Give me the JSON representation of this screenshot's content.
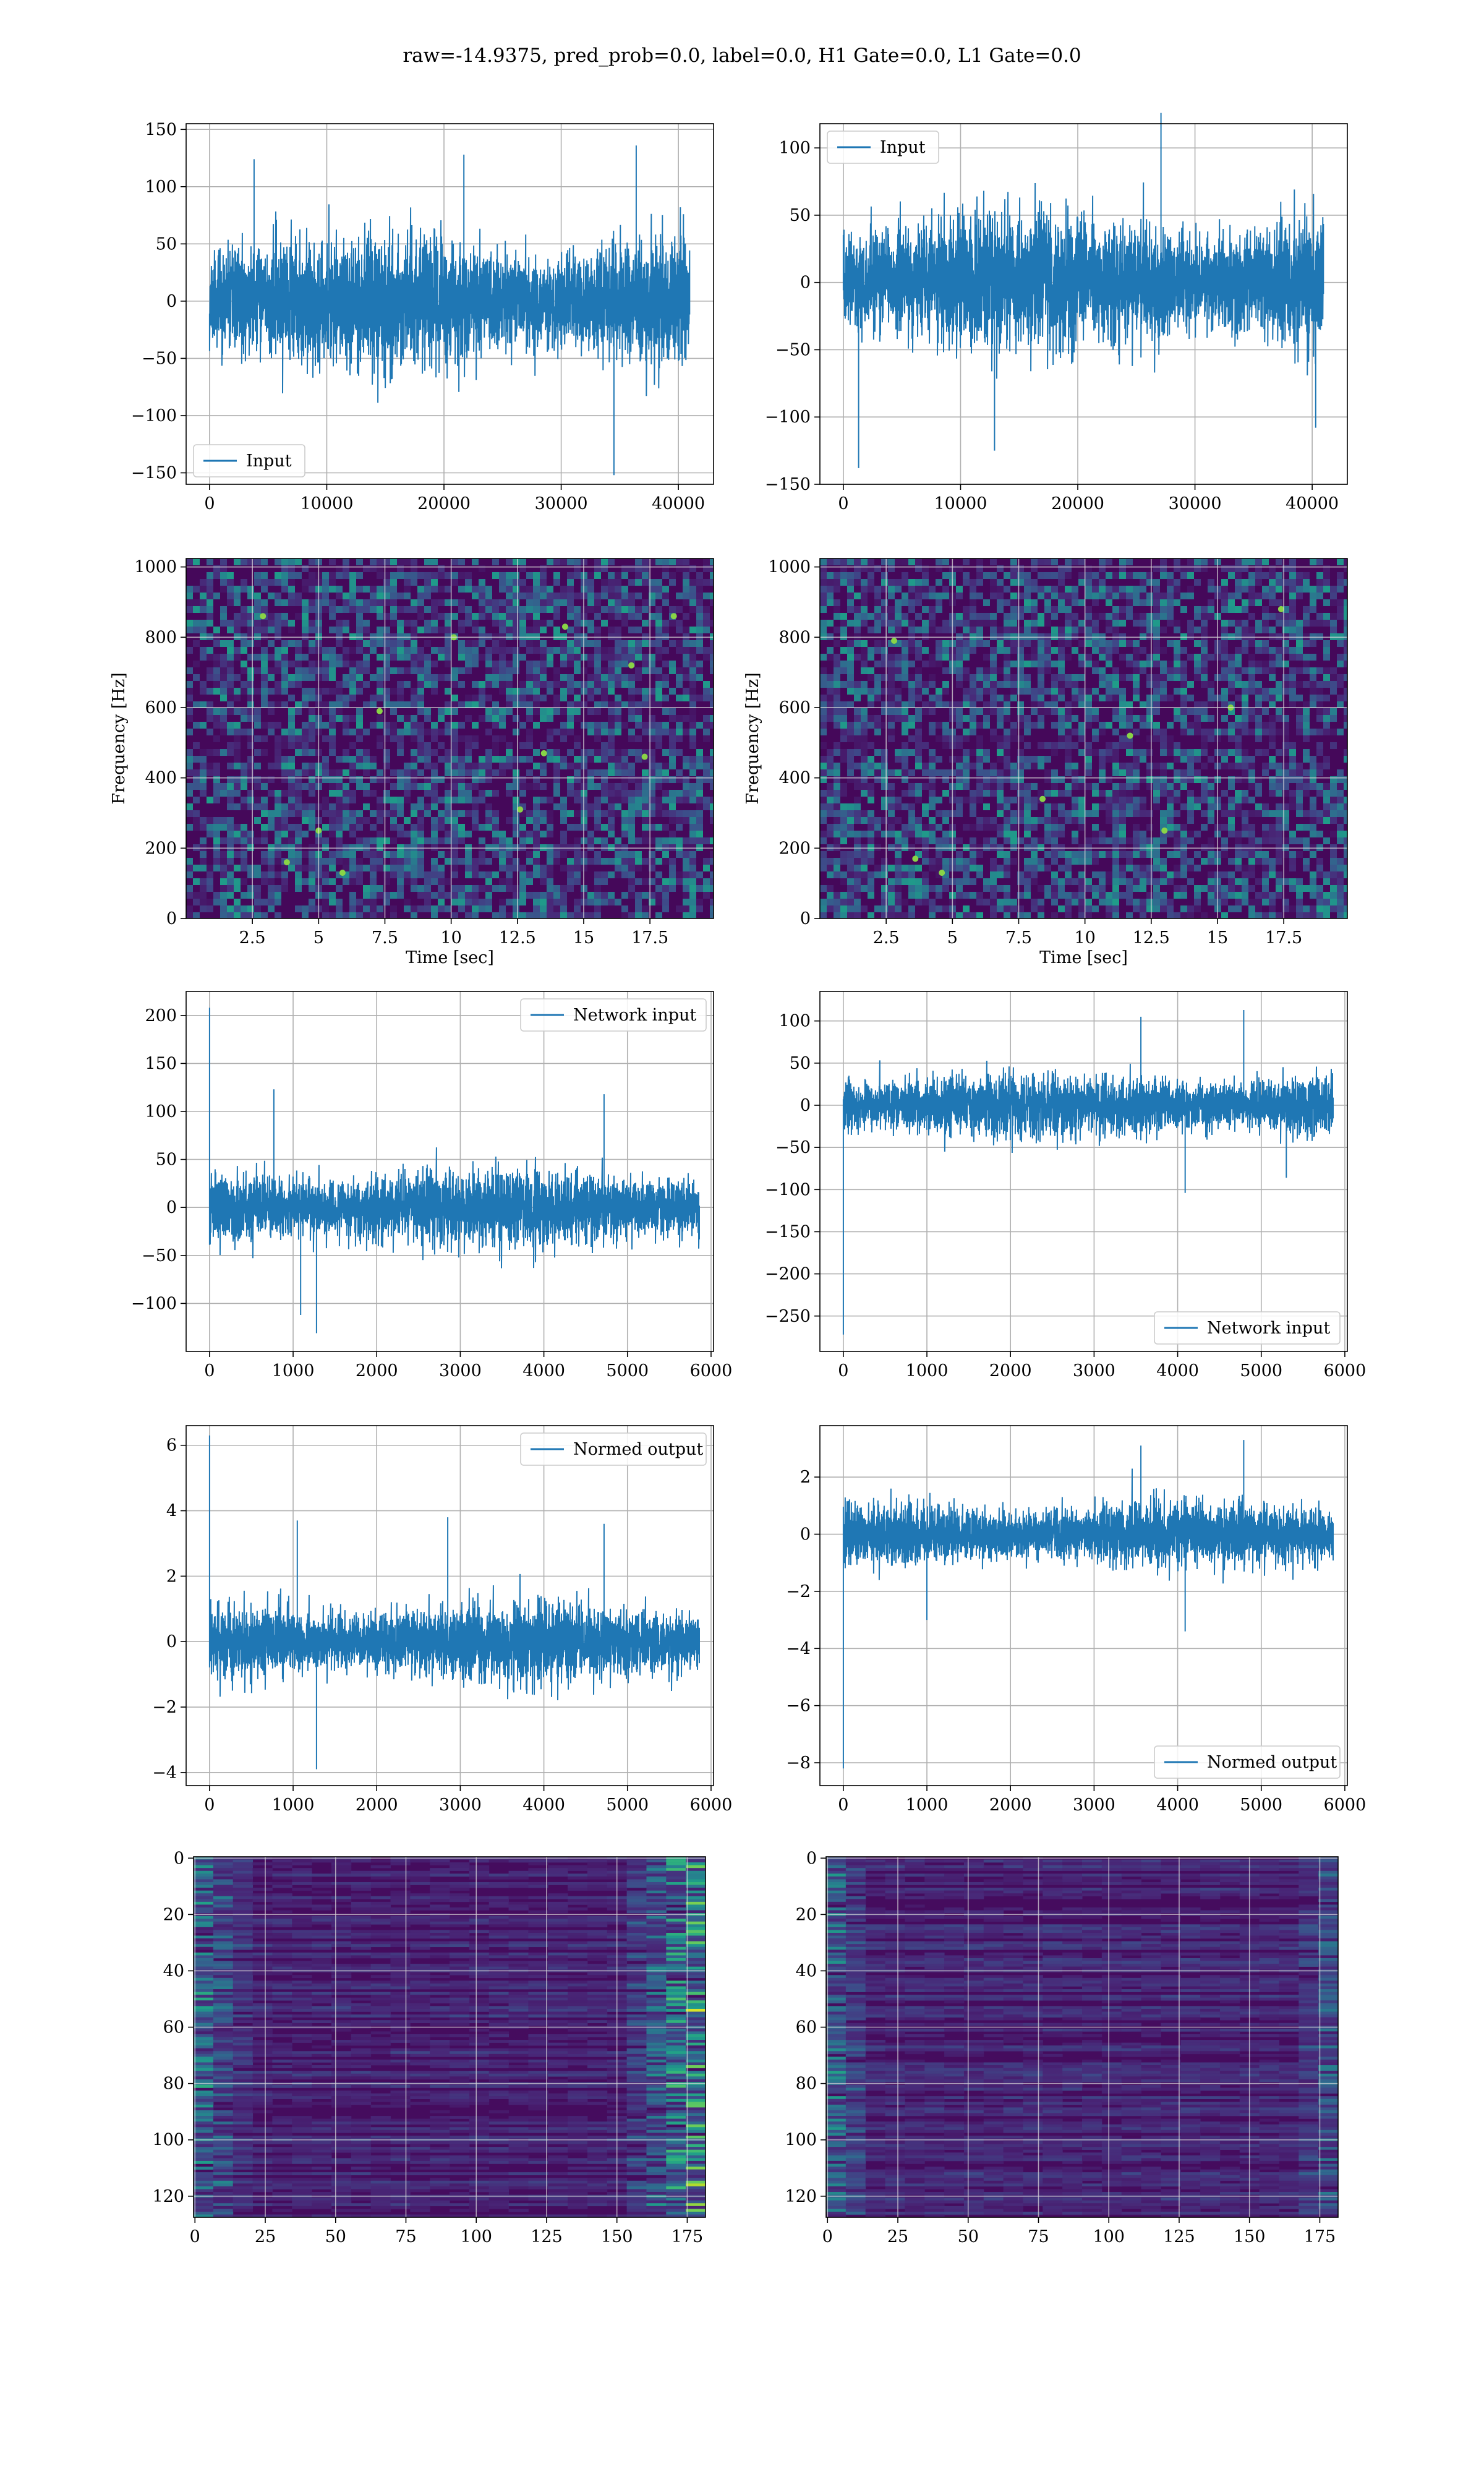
{
  "figure": {
    "suptitle": "raw=-14.9375, pred_prob=0.0, label=0.0, H1 Gate=0.0, L1 Gate=0.0",
    "line_color": "#1f77b4",
    "grid_color": "#b0b0b0"
  },
  "chart_data": [
    {
      "id": "input_h1",
      "type": "line",
      "title": "",
      "xlabel": "",
      "ylabel": "",
      "legend_position": "lower-left",
      "xlim": [
        -2000,
        43000
      ],
      "ylim": [
        -160,
        155
      ],
      "xticks": [
        0,
        10000,
        20000,
        30000,
        40000
      ],
      "yticks": [
        -150,
        -100,
        -50,
        0,
        50,
        100,
        150
      ],
      "series": [
        {
          "name": "Input",
          "n_points": 40960,
          "x_range": [
            0,
            40960
          ],
          "envelope_abs": 90,
          "typical_abs": 55,
          "extremes": [
            [
              34500,
              -152
            ],
            [
              36400,
              136
            ],
            [
              21700,
              128
            ],
            [
              3800,
              124
            ]
          ]
        }
      ]
    },
    {
      "id": "input_l1",
      "type": "line",
      "title": "",
      "xlabel": "",
      "ylabel": "",
      "legend_position": "top-left",
      "xlim": [
        -2000,
        43000
      ],
      "ylim": [
        -150,
        118
      ],
      "xticks": [
        0,
        10000,
        20000,
        30000,
        40000
      ],
      "yticks": [
        -150,
        -100,
        -50,
        0,
        50,
        100
      ],
      "series": [
        {
          "name": "Input",
          "n_points": 40960,
          "x_range": [
            0,
            40960
          ],
          "envelope_abs": 80,
          "typical_abs": 48,
          "extremes": [
            [
              1300,
              -138
            ],
            [
              27100,
              126
            ],
            [
              12900,
              -125
            ],
            [
              40300,
              -108
            ]
          ]
        }
      ]
    },
    {
      "id": "spec_h1",
      "type": "heatmap",
      "title": "",
      "xlabel": "Time [sec]",
      "ylabel": "Frequency [Hz]",
      "colormap": "viridis",
      "xlim": [
        0,
        19.9
      ],
      "ylim": [
        0,
        1024
      ],
      "xticks": [
        2.5,
        5.0,
        7.5,
        10.0,
        12.5,
        15.0,
        17.5
      ],
      "yticks": [
        0,
        200,
        400,
        600,
        800,
        1000
      ],
      "dark_bands_hz": [
        500,
        1000
      ],
      "bright_spots": [
        [
          2.9,
          860
        ],
        [
          5.0,
          250
        ],
        [
          7.3,
          590
        ],
        [
          10.1,
          800
        ],
        [
          12.6,
          310
        ],
        [
          14.3,
          830
        ],
        [
          16.8,
          720
        ],
        [
          17.3,
          460
        ],
        [
          3.8,
          160
        ],
        [
          5.9,
          130
        ],
        [
          13.5,
          470
        ],
        [
          18.4,
          860
        ]
      ]
    },
    {
      "id": "spec_l1",
      "type": "heatmap",
      "title": "",
      "xlabel": "Time [sec]",
      "ylabel": "Frequency [Hz]",
      "colormap": "viridis",
      "xlim": [
        0,
        19.9
      ],
      "ylim": [
        0,
        1024
      ],
      "xticks": [
        2.5,
        5.0,
        7.5,
        10.0,
        12.5,
        15.0,
        17.5
      ],
      "yticks": [
        0,
        200,
        400,
        600,
        800,
        1000
      ],
      "dark_bands_hz": [
        500,
        1000
      ],
      "bright_spots": [
        [
          3.6,
          170
        ],
        [
          4.6,
          130
        ],
        [
          15.5,
          600
        ],
        [
          2.8,
          790
        ],
        [
          8.4,
          340
        ],
        [
          11.7,
          520
        ],
        [
          17.4,
          880
        ],
        [
          13.0,
          250
        ]
      ]
    },
    {
      "id": "network_input_h1",
      "type": "line",
      "title": "",
      "xlabel": "",
      "ylabel": "",
      "legend_position": "top-right",
      "xlim": [
        -280,
        6030
      ],
      "ylim": [
        -150,
        225
      ],
      "xticks": [
        0,
        1000,
        2000,
        3000,
        4000,
        5000,
        6000
      ],
      "yticks": [
        -100,
        -50,
        0,
        50,
        100,
        150,
        200
      ],
      "series": [
        {
          "name": "Network input",
          "n_points": 5860,
          "x_range": [
            0,
            5860
          ],
          "envelope_abs": 55,
          "typical_abs": 38,
          "extremes": [
            [
              0,
              208
            ],
            [
              1280,
              -131
            ],
            [
              770,
              123
            ],
            [
              1090,
              -112
            ],
            [
              4720,
              118
            ]
          ]
        }
      ]
    },
    {
      "id": "network_input_l1",
      "type": "line",
      "title": "",
      "xlabel": "",
      "ylabel": "",
      "legend_position": "bottom-right",
      "xlim": [
        -280,
        6030
      ],
      "ylim": [
        -292,
        135
      ],
      "xticks": [
        0,
        1000,
        2000,
        3000,
        4000,
        5000,
        6000
      ],
      "yticks": [
        -250,
        -200,
        -150,
        -100,
        -50,
        0,
        50,
        100
      ],
      "series": [
        {
          "name": "Network input",
          "n_points": 5860,
          "x_range": [
            0,
            5860
          ],
          "envelope_abs": 55,
          "typical_abs": 36,
          "extremes": [
            [
              0,
              -272
            ],
            [
              4090,
              -104
            ],
            [
              4790,
              113
            ],
            [
              3560,
              105
            ],
            [
              5300,
              -86
            ]
          ]
        }
      ]
    },
    {
      "id": "normed_output_h1",
      "type": "line",
      "title": "",
      "xlabel": "",
      "ylabel": "",
      "legend_position": "top-right",
      "xlim": [
        -280,
        6030
      ],
      "ylim": [
        -4.4,
        6.6
      ],
      "xticks": [
        0,
        1000,
        2000,
        3000,
        4000,
        5000,
        6000
      ],
      "yticks": [
        -4,
        -2,
        0,
        2,
        4,
        6
      ],
      "series": [
        {
          "name": "Normed output",
          "n_points": 5860,
          "x_range": [
            0,
            5860
          ],
          "envelope_abs": 1.6,
          "typical_abs": 1.1,
          "extremes": [
            [
              0,
              6.3
            ],
            [
              1280,
              -3.9
            ],
            [
              1050,
              3.7
            ],
            [
              2850,
              3.8
            ],
            [
              4720,
              3.6
            ]
          ]
        }
      ]
    },
    {
      "id": "normed_output_l1",
      "type": "line",
      "title": "",
      "xlabel": "",
      "ylabel": "",
      "legend_position": "bottom-right",
      "xlim": [
        -280,
        6030
      ],
      "ylim": [
        -8.8,
        3.8
      ],
      "xticks": [
        0,
        1000,
        2000,
        3000,
        4000,
        5000,
        6000
      ],
      "yticks": [
        -8,
        -6,
        -4,
        -2,
        0,
        2
      ],
      "series": [
        {
          "name": "Normed output",
          "n_points": 5860,
          "x_range": [
            0,
            5860
          ],
          "envelope_abs": 1.7,
          "typical_abs": 1.1,
          "extremes": [
            [
              0,
              -8.2
            ],
            [
              4090,
              -3.4
            ],
            [
              4790,
              3.3
            ],
            [
              3560,
              3.1
            ],
            [
              1000,
              -3.0
            ]
          ]
        }
      ]
    },
    {
      "id": "features_h1",
      "type": "heatmap",
      "title": "",
      "xlabel": "",
      "ylabel": "",
      "colormap": "viridis",
      "rows": 128,
      "cols": 182,
      "xlim": [
        -0.5,
        181.5
      ],
      "ylim": [
        127.5,
        -0.5
      ],
      "xticks": [
        0,
        25,
        50,
        75,
        100,
        125,
        150,
        175
      ],
      "yticks": [
        0,
        20,
        40,
        60,
        80,
        100,
        120
      ],
      "bright_regions": "left edge (cols 0-20) and right edge (cols 155-181)"
    },
    {
      "id": "features_l1",
      "type": "heatmap",
      "title": "",
      "xlabel": "",
      "ylabel": "",
      "colormap": "viridis",
      "rows": 128,
      "cols": 182,
      "xlim": [
        -0.5,
        181.5
      ],
      "ylim": [
        127.5,
        -0.5
      ],
      "xticks": [
        0,
        25,
        50,
        75,
        100,
        125,
        150,
        175
      ],
      "yticks": [
        0,
        20,
        40,
        60,
        80,
        100,
        120
      ],
      "bright_regions": "left edge (cols 0-15), faint right edge"
    }
  ]
}
